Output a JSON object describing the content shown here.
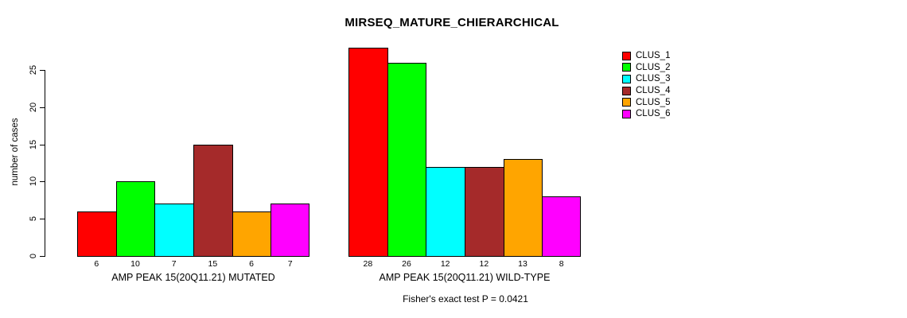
{
  "chart_data": {
    "type": "bar",
    "title": "MIRSEQ_MATURE_CHIERARCHICAL",
    "ylabel": "number of cases",
    "ylim": [
      0,
      25
    ],
    "yticks": [
      0,
      5,
      10,
      15,
      20,
      25
    ],
    "grid": false,
    "legend_position": "right",
    "categories": [
      "CLUS_1",
      "CLUS_2",
      "CLUS_3",
      "CLUS_4",
      "CLUS_5",
      "CLUS_6"
    ],
    "colors": [
      "#FF0000",
      "#00FF00",
      "#00FFFF",
      "#A52A2A",
      "#FFA500",
      "#FF00FF"
    ],
    "groups": [
      {
        "label": "AMP PEAK 15(20Q11.21) MUTATED",
        "values": [
          6,
          10,
          7,
          15,
          6,
          7
        ]
      },
      {
        "label": "AMP PEAK 15(20Q11.21) WILD-TYPE",
        "values": [
          28,
          26,
          12,
          12,
          13,
          8
        ]
      }
    ],
    "footnote": "Fisher's exact test P = 0.0421"
  }
}
